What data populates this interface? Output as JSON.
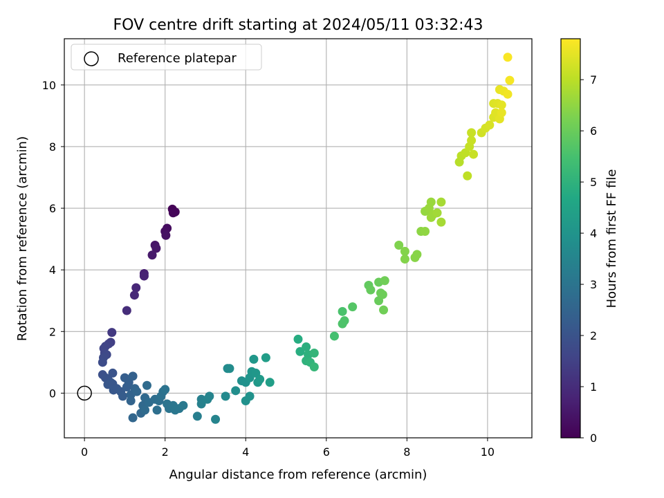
{
  "chart_data": {
    "type": "scatter",
    "title": "FOV centre drift starting at 2024/05/11 03:32:43",
    "xlabel": "Angular distance from reference (arcmin)",
    "ylabel": "Rotation from reference (arcmin)",
    "xlim": [
      -0.5,
      11.1
    ],
    "ylim": [
      -1.45,
      11.5
    ],
    "xticks": [
      0,
      2,
      4,
      6,
      8,
      10
    ],
    "yticks": [
      0,
      2,
      4,
      6,
      8,
      10
    ],
    "grid": true,
    "legend": {
      "placement": "top-left",
      "entries": [
        "Reference platepar"
      ]
    },
    "reference_point": {
      "x": 0,
      "y": 0,
      "label": "Reference platepar"
    },
    "colorbar": {
      "label": "Hours from first FF file",
      "colormap": "viridis",
      "range": [
        0,
        7.8
      ],
      "ticks": [
        0,
        1,
        2,
        3,
        4,
        5,
        6,
        7
      ]
    },
    "points": [
      [
        2.18,
        5.97,
        0.05
      ],
      [
        2.25,
        5.88,
        0.1
      ],
      [
        2.2,
        5.85,
        0.12
      ],
      [
        2.05,
        5.35,
        0.25
      ],
      [
        2.0,
        5.25,
        0.3
      ],
      [
        2.02,
        5.12,
        0.35
      ],
      [
        1.75,
        4.8,
        0.45
      ],
      [
        1.78,
        4.7,
        0.5
      ],
      [
        1.68,
        4.48,
        0.55
      ],
      [
        1.48,
        3.88,
        0.7
      ],
      [
        1.48,
        3.8,
        0.75
      ],
      [
        1.28,
        3.42,
        0.85
      ],
      [
        1.24,
        3.18,
        0.9
      ],
      [
        1.05,
        2.68,
        1.0
      ],
      [
        0.68,
        1.97,
        1.3
      ],
      [
        0.65,
        1.65,
        1.45
      ],
      [
        0.6,
        1.6,
        1.5
      ],
      [
        0.52,
        1.52,
        1.55
      ],
      [
        0.48,
        1.45,
        1.6
      ],
      [
        0.5,
        1.3,
        1.65
      ],
      [
        0.55,
        1.25,
        1.7
      ],
      [
        0.47,
        1.15,
        1.75
      ],
      [
        0.45,
        1.0,
        1.8
      ],
      [
        0.45,
        0.6,
        1.9
      ],
      [
        0.52,
        0.5,
        1.95
      ],
      [
        0.58,
        0.45,
        2.0
      ],
      [
        0.7,
        0.65,
        2.0
      ],
      [
        0.65,
        0.35,
        2.05
      ],
      [
        0.58,
        0.28,
        2.1
      ],
      [
        0.7,
        0.3,
        2.1
      ],
      [
        0.72,
        0.1,
        2.15
      ],
      [
        0.8,
        0.15,
        2.15
      ],
      [
        0.9,
        0.05,
        2.2
      ],
      [
        0.95,
        -0.1,
        2.25
      ],
      [
        1.0,
        0.5,
        2.3
      ],
      [
        1.05,
        0.2,
        2.3
      ],
      [
        1.1,
        0.35,
        2.35
      ],
      [
        1.2,
        0.55,
        2.4
      ],
      [
        1.15,
        -0.05,
        2.45
      ],
      [
        1.15,
        -0.25,
        2.5
      ],
      [
        1.25,
        0.15,
        2.5
      ],
      [
        1.2,
        -0.8,
        2.55
      ],
      [
        1.3,
        0.05,
        2.55
      ],
      [
        1.4,
        -0.65,
        2.6
      ],
      [
        1.45,
        -0.4,
        2.65
      ],
      [
        1.5,
        -0.15,
        2.65
      ],
      [
        1.5,
        -0.55,
        2.7
      ],
      [
        1.55,
        0.25,
        2.7
      ],
      [
        1.6,
        -0.3,
        2.75
      ],
      [
        1.75,
        -0.2,
        2.8
      ],
      [
        1.85,
        -0.25,
        2.85
      ],
      [
        1.8,
        -0.55,
        2.85
      ],
      [
        1.95,
        0.05,
        2.9
      ],
      [
        1.9,
        -0.1,
        2.9
      ],
      [
        2.0,
        0.12,
        2.95
      ],
      [
        2.05,
        -0.35,
        3.0
      ],
      [
        2.1,
        -0.5,
        3.0
      ],
      [
        2.2,
        -0.4,
        3.05
      ],
      [
        2.25,
        -0.55,
        3.1
      ],
      [
        2.35,
        -0.5,
        3.1
      ],
      [
        2.45,
        -0.4,
        3.15
      ],
      [
        2.8,
        -0.75,
        3.3
      ],
      [
        2.9,
        -0.2,
        3.35
      ],
      [
        2.9,
        -0.35,
        3.4
      ],
      [
        3.05,
        -0.2,
        3.45
      ],
      [
        3.1,
        -0.1,
        3.5
      ],
      [
        3.25,
        -0.85,
        3.5
      ],
      [
        3.5,
        -0.1,
        3.65
      ],
      [
        3.55,
        0.8,
        3.7
      ],
      [
        3.6,
        0.8,
        3.75
      ],
      [
        3.75,
        0.08,
        3.8
      ],
      [
        3.9,
        0.4,
        3.85
      ],
      [
        4.0,
        0.35,
        3.9
      ],
      [
        4.0,
        -0.25,
        3.9
      ],
      [
        4.1,
        -0.1,
        3.95
      ],
      [
        4.1,
        0.5,
        4.0
      ],
      [
        4.15,
        0.7,
        4.05
      ],
      [
        4.2,
        1.1,
        4.1
      ],
      [
        4.25,
        0.65,
        4.1
      ],
      [
        4.3,
        0.35,
        4.15
      ],
      [
        4.35,
        0.45,
        4.2
      ],
      [
        4.5,
        1.15,
        4.3
      ],
      [
        4.6,
        0.35,
        4.35
      ],
      [
        5.3,
        1.75,
        4.8
      ],
      [
        5.35,
        1.35,
        4.85
      ],
      [
        5.5,
        1.5,
        4.9
      ],
      [
        5.55,
        1.25,
        4.95
      ],
      [
        5.5,
        1.05,
        5.0
      ],
      [
        5.6,
        1.0,
        5.05
      ],
      [
        5.7,
        1.3,
        5.1
      ],
      [
        5.7,
        0.85,
        5.15
      ],
      [
        6.2,
        1.85,
        5.45
      ],
      [
        6.4,
        2.65,
        5.55
      ],
      [
        6.4,
        2.25,
        5.6
      ],
      [
        6.45,
        2.35,
        5.6
      ],
      [
        6.65,
        2.8,
        5.7
      ],
      [
        7.05,
        3.5,
        5.9
      ],
      [
        7.1,
        3.35,
        5.95
      ],
      [
        7.3,
        3.6,
        6.0
      ],
      [
        7.3,
        3.0,
        6.0
      ],
      [
        7.35,
        3.25,
        6.05
      ],
      [
        7.4,
        3.2,
        6.05
      ],
      [
        7.45,
        3.65,
        6.1
      ],
      [
        7.42,
        2.7,
        6.1
      ],
      [
        7.8,
        4.8,
        6.3
      ],
      [
        7.95,
        4.6,
        6.35
      ],
      [
        7.95,
        4.35,
        6.35
      ],
      [
        8.2,
        4.4,
        6.4
      ],
      [
        8.25,
        4.5,
        6.4
      ],
      [
        8.35,
        5.25,
        6.45
      ],
      [
        8.45,
        5.25,
        6.5
      ],
      [
        8.45,
        5.9,
        6.55
      ],
      [
        8.55,
        6.0,
        6.6
      ],
      [
        8.6,
        6.2,
        6.6
      ],
      [
        8.6,
        5.7,
        6.65
      ],
      [
        8.65,
        5.8,
        6.65
      ],
      [
        8.75,
        5.85,
        6.7
      ],
      [
        8.85,
        5.55,
        6.75
      ],
      [
        8.85,
        6.2,
        6.75
      ],
      [
        9.3,
        7.5,
        6.95
      ],
      [
        9.35,
        7.7,
        7.0
      ],
      [
        9.45,
        7.8,
        7.05
      ],
      [
        9.5,
        7.05,
        7.05
      ],
      [
        9.55,
        8.0,
        7.1
      ],
      [
        9.6,
        8.45,
        7.15
      ],
      [
        9.6,
        8.2,
        7.15
      ],
      [
        9.65,
        7.75,
        7.15
      ],
      [
        9.85,
        8.45,
        7.25
      ],
      [
        9.95,
        8.6,
        7.3
      ],
      [
        10.05,
        8.7,
        7.35
      ],
      [
        10.15,
        9.4,
        7.4
      ],
      [
        10.15,
        8.95,
        7.4
      ],
      [
        10.2,
        9.1,
        7.45
      ],
      [
        10.25,
        9.4,
        7.45
      ],
      [
        10.3,
        8.9,
        7.5
      ],
      [
        10.35,
        9.35,
        7.5
      ],
      [
        10.3,
        9.85,
        7.55
      ],
      [
        10.35,
        9.1,
        7.55
      ],
      [
        10.4,
        9.8,
        7.6
      ],
      [
        10.5,
        9.7,
        7.65
      ],
      [
        10.55,
        10.15,
        7.7
      ],
      [
        10.5,
        10.9,
        7.75
      ]
    ]
  }
}
